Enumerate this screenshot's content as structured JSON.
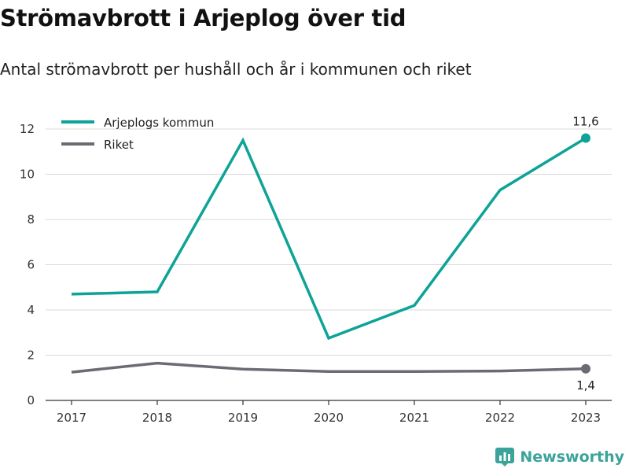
{
  "header": {
    "title": "Strömavbrott i Arjeplog över tid",
    "subtitle": "Antal strömavbrott per hushåll och år i kommunen och riket"
  },
  "brand": {
    "name": "Newsworthy",
    "icon": "newsworthy-logo-icon",
    "color": "#3aa39a"
  },
  "chart_data": {
    "type": "line",
    "title": "Strömavbrott i Arjeplog över tid",
    "subtitle": "Antal strömavbrott per hushåll och år i kommunen och riket",
    "xlabel": "",
    "ylabel": "",
    "categories": [
      "2017",
      "2018",
      "2019",
      "2020",
      "2021",
      "2022",
      "2023"
    ],
    "ylim": [
      0,
      12
    ],
    "yticks": [
      0,
      2,
      4,
      6,
      8,
      10,
      12
    ],
    "grid": true,
    "legend_position": "top-left",
    "series": [
      {
        "name": "Arjeplogs kommun",
        "color": "#0da397",
        "values": [
          4.7,
          4.8,
          11.5,
          2.75,
          4.2,
          9.3,
          11.6
        ]
      },
      {
        "name": "Riket",
        "color": "#6b6b73",
        "values": [
          1.25,
          1.65,
          1.38,
          1.28,
          1.28,
          1.3,
          1.4
        ]
      }
    ],
    "end_labels": [
      "11,6",
      "1,4"
    ]
  }
}
